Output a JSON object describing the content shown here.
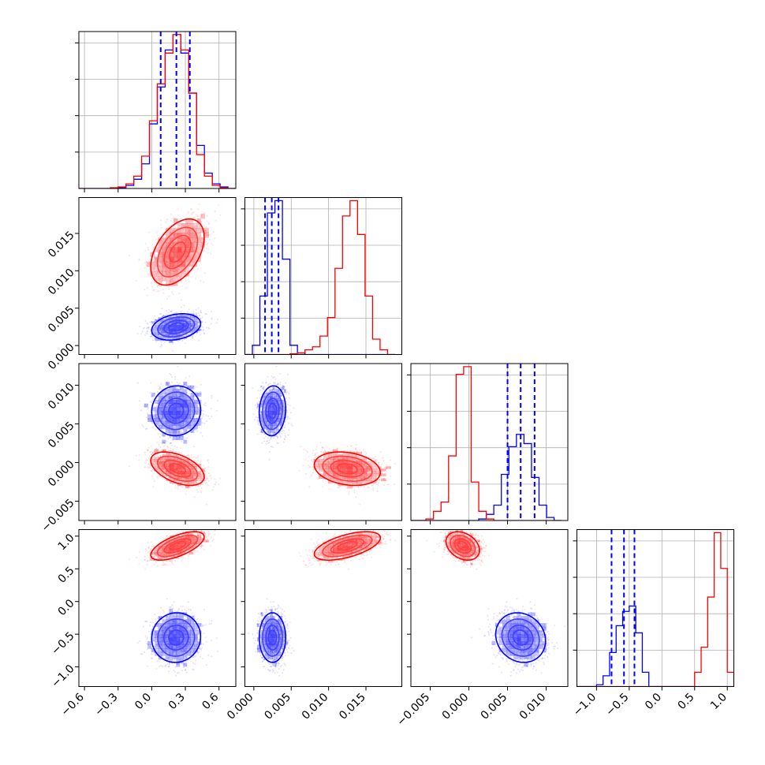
{
  "chart_data": {
    "type": "corner",
    "colors": {
      "blue": "#0000ff",
      "red": "#ff0000"
    },
    "grid": true,
    "parameters": [
      {
        "range": [
          -0.65,
          0.75
        ],
        "ticks": [
          -0.6,
          -0.3,
          0.0,
          0.3,
          0.6
        ],
        "tick_labels": [
          "−0.6",
          "−0.3",
          "0.0",
          "0.3",
          "0.6"
        ]
      },
      {
        "range": [
          -0.0012,
          0.0198
        ],
        "ticks": [
          0.0,
          0.005,
          0.01,
          0.015
        ],
        "tick_labels": [
          "0.000",
          "0.005",
          "0.010",
          "0.015"
        ]
      },
      {
        "range": [
          -0.0075,
          0.0128
        ],
        "ticks": [
          -0.005,
          0.0,
          0.005,
          0.01
        ],
        "tick_labels": [
          "−0.005",
          "0.000",
          "0.005",
          "0.010"
        ]
      },
      {
        "range": [
          -1.3,
          1.1
        ],
        "ticks": [
          -1.0,
          -0.5,
          0.0,
          0.5,
          1.0
        ],
        "tick_labels": [
          "−1.0",
          "−0.5",
          "0.0",
          "0.5",
          "1.0"
        ]
      }
    ],
    "populations": [
      {
        "color": "blue",
        "mean": [
          0.22,
          0.0025,
          0.0067,
          -0.55
        ],
        "sd": [
          0.11,
          0.0009,
          0.0016,
          0.19
        ],
        "corr": [
          [
            0,
            1,
            0.25
          ],
          [
            1,
            2,
            0.1
          ],
          [
            2,
            3,
            -0.1
          ]
        ],
        "quantiles": [
          [
            0.08,
            0.22,
            0.34
          ],
          [
            0.0015,
            0.0024,
            0.0033
          ],
          [
            0.005,
            0.0067,
            0.0085
          ],
          [
            -0.77,
            -0.58,
            -0.42
          ]
        ]
      },
      {
        "color": "red",
        "mean": [
          0.23,
          0.0125,
          -0.0008,
          0.85
        ],
        "sd": [
          0.12,
          0.0022,
          0.0011,
          0.1
        ],
        "corr": [
          [
            0,
            1,
            0.45
          ],
          [
            0,
            2,
            -0.5
          ],
          [
            1,
            3,
            0.45
          ],
          [
            0,
            3,
            0.5
          ]
        ],
        "quantiles": []
      }
    ],
    "histograms": [
      {
        "edges": [
          -0.65,
          -0.58,
          -0.51,
          -0.44,
          -0.37,
          -0.3,
          -0.23,
          -0.16,
          -0.09,
          -0.02,
          0.05,
          0.12,
          0.19,
          0.26,
          0.33,
          0.4,
          0.47,
          0.54,
          0.61,
          0.68,
          0.75
        ],
        "blue": [
          0,
          0,
          0,
          0,
          0,
          0.005,
          0.02,
          0.06,
          0.16,
          0.42,
          0.66,
          0.9,
          1.0,
          0.88,
          0.62,
          0.28,
          0.1,
          0.03,
          0.01,
          0
        ],
        "red": [
          0,
          0,
          0,
          0,
          0.005,
          0.01,
          0.03,
          0.08,
          0.21,
          0.44,
          0.68,
          0.88,
          1.0,
          0.9,
          0.62,
          0.22,
          0.08,
          0.02,
          0.005,
          0
        ]
      },
      {
        "edges": [
          -0.0012,
          -0.000195,
          0.00081,
          0.001815,
          0.00282,
          0.003825,
          0.00483,
          0.005835,
          0.00684,
          0.007845,
          0.00885,
          0.009855,
          0.01086,
          0.011865,
          0.01287,
          0.013875,
          0.01488,
          0.015885,
          0.01689,
          0.017895,
          0.0189
        ],
        "blue": [
          0,
          0.06,
          0.38,
          0.92,
          1.0,
          0.62,
          0.06,
          0.01,
          0,
          0,
          0,
          0,
          0,
          0,
          0,
          0,
          0,
          0,
          0,
          0
        ],
        "red": [
          0,
          0,
          0,
          0,
          0,
          0,
          0.005,
          0.01,
          0.03,
          0.05,
          0.12,
          0.24,
          0.56,
          0.9,
          1.0,
          0.78,
          0.38,
          0.1,
          0.03,
          0
        ]
      },
      {
        "edges": [
          -0.0075,
          -0.006525,
          -0.00555,
          -0.004575,
          -0.0036,
          -0.002625,
          -0.00165,
          -0.000675,
          0.0003,
          0.001275,
          0.00225,
          0.003225,
          0.0042,
          0.005175,
          0.00615,
          0.007125,
          0.0081,
          0.009075,
          0.01005,
          0.011025,
          0.012
        ],
        "blue": [
          0,
          0,
          0,
          0,
          0,
          0,
          0,
          0,
          0,
          0.01,
          0.04,
          0.1,
          0.3,
          0.48,
          0.56,
          0.5,
          0.28,
          0.1,
          0.02,
          0
        ],
        "red": [
          0,
          0,
          0.01,
          0.06,
          0.12,
          0.42,
          0.95,
          1.0,
          0.25,
          0.06,
          0.01,
          0,
          0,
          0,
          0,
          0,
          0,
          0,
          0,
          0
        ]
      },
      {
        "edges": [
          -1.4,
          -1.3,
          -1.2,
          -1.1,
          -1.0,
          -0.9,
          -0.8,
          -0.7,
          -0.6,
          -0.5,
          -0.4,
          -0.3,
          -0.2,
          -0.1,
          0.0,
          0.1,
          0.2,
          0.3,
          0.4,
          0.5,
          0.6,
          0.7,
          0.8,
          0.9,
          1.0,
          1.1
        ],
        "blue": [
          0,
          0,
          0,
          0,
          0.01,
          0.06,
          0.19,
          0.34,
          0.42,
          0.45,
          0.3,
          0.08,
          0,
          0,
          0,
          0,
          0,
          0,
          0,
          0,
          0,
          0,
          0,
          0,
          0
        ],
        "red": [
          0,
          0,
          0,
          0,
          0,
          0,
          0,
          0,
          0,
          0,
          0,
          0,
          0,
          0,
          0,
          0,
          0,
          0,
          0,
          0.08,
          0.22,
          0.5,
          0.86,
          0.66,
          0.08
        ]
      }
    ]
  }
}
